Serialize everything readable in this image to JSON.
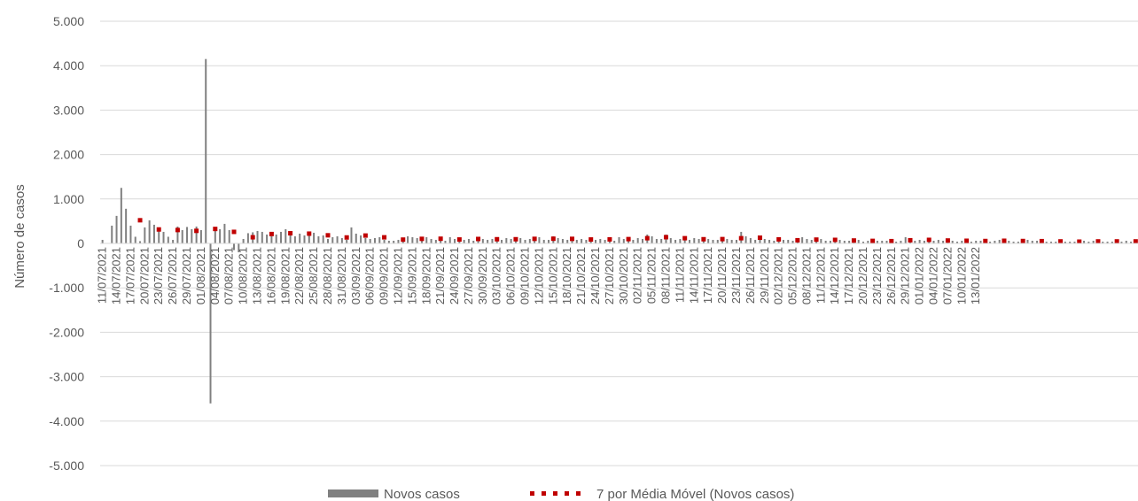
{
  "chart_data": {
    "type": "bar",
    "title": "",
    "ylabel": "Número de casos",
    "ylim": [
      -5000,
      5000
    ],
    "yticks": [
      5000,
      4000,
      3000,
      2000,
      1000,
      0,
      -1000,
      -2000,
      -3000,
      -4000,
      -5000
    ],
    "ytick_labels": [
      "5.000",
      "4.000",
      "3.000",
      "2.000",
      "1.000",
      "0",
      "-1.000",
      "-2.000",
      "-3.000",
      "-4.000",
      "-5.000"
    ],
    "grid": true,
    "legend_position": "bottom",
    "x_start_date": "2021-07-11",
    "x_tick_labels": [
      "11/07/2021",
      "14/07/2021",
      "17/07/2021",
      "20/07/2021",
      "23/07/2021",
      "26/07/2021",
      "29/07/2021",
      "01/08/2021",
      "04/08/2021",
      "07/08/2021",
      "10/08/2021",
      "13/08/2021",
      "16/08/2021",
      "19/08/2021",
      "22/08/2021",
      "25/08/2021",
      "28/08/2021",
      "31/08/2021",
      "03/09/2021",
      "06/09/2021",
      "09/09/2021",
      "12/09/2021",
      "15/09/2021",
      "18/09/2021",
      "21/09/2021",
      "24/09/2021",
      "27/09/2021",
      "30/09/2021",
      "03/10/2021",
      "06/10/2021",
      "09/10/2021",
      "12/10/2021",
      "15/10/2021",
      "18/10/2021",
      "21/10/2021",
      "24/10/2021",
      "27/10/2021",
      "30/10/2021",
      "02/11/2021",
      "05/11/2021",
      "08/11/2021",
      "11/11/2021",
      "14/11/2021",
      "17/11/2021",
      "20/11/2021",
      "23/11/2021",
      "26/11/2021",
      "29/11/2021",
      "02/12/2021",
      "05/12/2021",
      "08/12/2021",
      "11/12/2021",
      "14/12/2021",
      "17/12/2021",
      "20/12/2021",
      "23/12/2021",
      "26/12/2021",
      "29/12/2021",
      "01/01/2022",
      "04/01/2022",
      "07/01/2022",
      "10/01/2022",
      "13/01/2022"
    ],
    "series": [
      {
        "name": "Novos casos",
        "type": "bar",
        "color": "#808080",
        "values": [
          80,
          0,
          400,
          620,
          1250,
          780,
          400,
          150,
          50,
          360,
          520,
          420,
          300,
          260,
          150,
          80,
          380,
          300,
          370,
          320,
          380,
          300,
          4150,
          -3600,
          360,
          320,
          440,
          300,
          -150,
          -200,
          100,
          230,
          250,
          280,
          260,
          200,
          160,
          200,
          260,
          320,
          200,
          160,
          220,
          180,
          200,
          240,
          160,
          180,
          100,
          140,
          160,
          120,
          80,
          360,
          220,
          180,
          120,
          100,
          120,
          140,
          80,
          60,
          60,
          80,
          60,
          160,
          140,
          120,
          100,
          140,
          100,
          80,
          60,
          60,
          140,
          100,
          80,
          80,
          100,
          60,
          140,
          100,
          80,
          100,
          80,
          80,
          120,
          100,
          100,
          120,
          80,
          100,
          100,
          140,
          80,
          80,
          160,
          120,
          100,
          80,
          100,
          80,
          100,
          80,
          80,
          80,
          100,
          80,
          120,
          60,
          140,
          100,
          80,
          80,
          120,
          100,
          200,
          160,
          100,
          100,
          200,
          120,
          80,
          100,
          120,
          80,
          120,
          100,
          60,
          100,
          80,
          80,
          140,
          100,
          80,
          80,
          260,
          160,
          120,
          80,
          120,
          100,
          80,
          60,
          80,
          80,
          80,
          60,
          60,
          140,
          100,
          80,
          80,
          100,
          60,
          60,
          80,
          80,
          60,
          60,
          60,
          80,
          40,
          60,
          40,
          60,
          60,
          60,
          40,
          40,
          60,
          140,
          100,
          60,
          80,
          60,
          60,
          60,
          80,
          60,
          60,
          60,
          40,
          60,
          60,
          40,
          60,
          60,
          60,
          40,
          60,
          80,
          60,
          60,
          40,
          40,
          40,
          80,
          60,
          60,
          40,
          40,
          40,
          40,
          40,
          40,
          40,
          40,
          40,
          60,
          40,
          60,
          40,
          40,
          40,
          40,
          60,
          40,
          60,
          40,
          40,
          40,
          40,
          40,
          40,
          40,
          40,
          40,
          40,
          40,
          40,
          40,
          80,
          60,
          40,
          120,
          80,
          60,
          200,
          160,
          100,
          220,
          200,
          300
        ]
      },
      {
        "name": "7 por Média Móvel (Novos casos)",
        "type": "line",
        "style": "dotted",
        "color": "#c00000",
        "values": [
          null,
          null,
          null,
          null,
          null,
          null,
          null,
          null,
          null,
          null,
          null,
          null,
          null,
          null,
          null,
          null,
          null,
          null,
          null,
          null,
          null,
          null,
          null,
          null,
          null,
          null,
          null,
          null,
          null,
          null,
          null,
          null,
          null,
          null,
          null,
          null,
          null,
          null,
          null,
          null,
          null,
          null,
          null,
          null,
          null,
          null,
          null,
          null,
          null,
          null,
          null,
          null,
          null,
          null,
          null,
          null,
          null,
          null,
          null,
          null,
          null,
          null,
          null,
          null,
          null,
          null,
          null,
          null,
          null,
          null,
          null,
          null,
          null,
          null,
          null,
          null,
          null,
          null,
          null,
          null,
          null,
          null,
          null,
          null,
          null,
          null,
          null,
          null,
          null,
          null,
          null,
          null,
          null,
          null,
          null,
          null,
          null,
          null,
          null,
          null,
          null,
          null,
          null,
          null,
          null,
          null,
          null,
          null,
          null,
          null,
          null,
          null,
          null,
          null,
          null,
          null,
          null,
          null,
          null,
          null,
          null,
          null,
          null,
          null,
          null,
          null,
          null,
          null,
          null,
          null,
          null,
          null,
          null,
          null,
          null,
          null,
          null,
          null,
          null,
          null,
          null,
          null,
          null,
          null,
          null,
          null,
          null,
          null,
          null,
          null,
          null,
          null,
          null,
          null,
          null,
          null,
          null,
          null,
          null,
          null,
          null,
          null,
          null,
          null,
          null,
          null,
          null,
          null,
          null,
          null,
          null,
          null,
          null,
          null,
          null,
          null,
          null,
          null,
          null,
          null,
          null,
          null,
          null,
          null,
          null,
          null,
          null,
          null,
          null,
          null,
          null,
          null,
          null,
          null,
          null,
          null,
          null,
          null,
          null,
          null,
          null,
          null,
          null,
          null,
          null,
          null,
          null,
          null,
          null,
          null,
          null,
          null,
          null,
          null,
          null,
          null,
          null,
          null,
          null,
          null,
          null,
          null,
          null,
          null,
          null,
          null
        ]
      }
    ]
  },
  "legend": {
    "bar_label": "Novos casos",
    "line_label": "7 por Média Móvel (Novos casos)"
  }
}
